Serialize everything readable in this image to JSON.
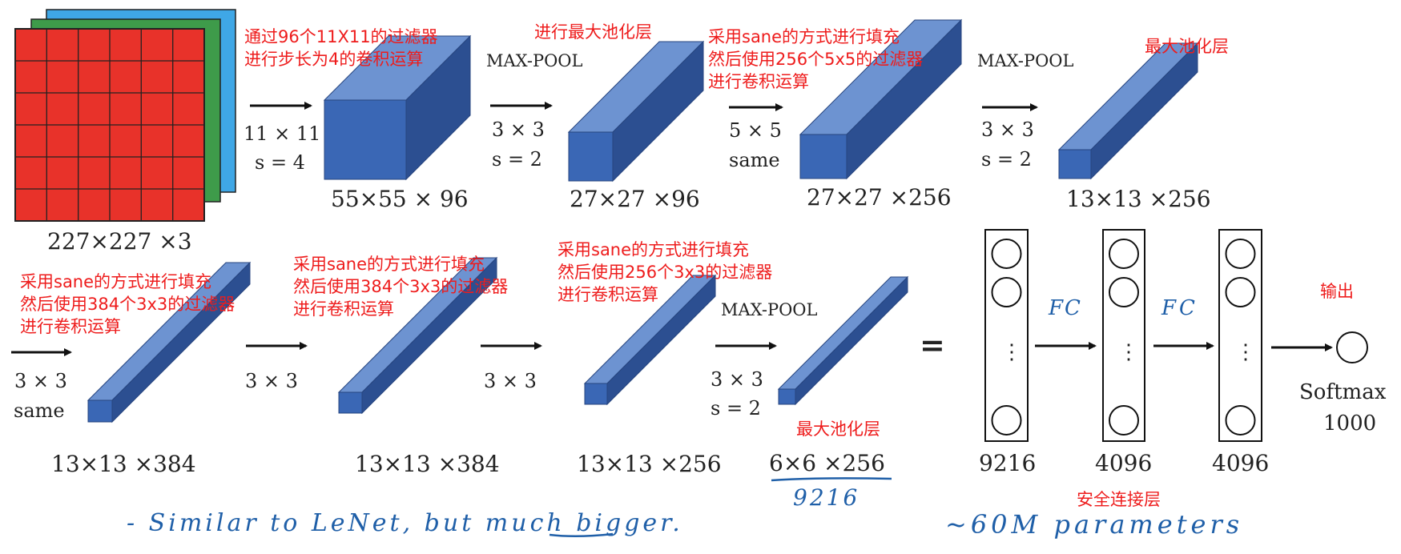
{
  "row1": {
    "input": {
      "dims": "227×227 ×3"
    },
    "conv1": {
      "kernel": "11 × 11",
      "stride": "s = 4",
      "dims": "55×55 × 96",
      "note": "通过96个11X11的过滤器\n进行步长为4的卷积运算"
    },
    "pool1": {
      "op": "MAX-POOL",
      "kernel": "3 × 3",
      "stride": "s = 2",
      "dims": "27×27 ×96",
      "note": "进行最大池化层"
    },
    "conv2": {
      "kernel": "5 × 5",
      "stride": "same",
      "dims": "27×27 ×256",
      "note": "采用sane的方式进行填充\n然后使用256个5x5的过滤器\n进行卷积运算"
    },
    "pool2": {
      "op": "MAX-POOL",
      "kernel": "3 × 3",
      "stride": "s = 2",
      "dims": "13×13 ×256",
      "note": "最大池化层"
    }
  },
  "row2": {
    "conv3": {
      "kernel": "3 × 3",
      "stride": "same",
      "dims": "13×13 ×384",
      "note": "采用sane的方式进行填充\n然后使用384个3x3的过滤器\n进行卷积运算"
    },
    "conv4": {
      "kernel": "3 × 3",
      "dims": "13×13 ×384",
      "note": "采用sane的方式进行填充\n然后使用384个3x3的过滤器\n进行卷积运算"
    },
    "conv5": {
      "kernel": "3 × 3",
      "dims": "13×13 ×256",
      "note": "采用sane的方式进行填充\n然后使用256个3x3的过滤器\n进行卷积运算"
    },
    "pool3": {
      "op": "MAX-POOL",
      "kernel": "3 × 3",
      "stride": "s = 2",
      "dims": "6×6 ×256",
      "note": "最大池化层"
    },
    "equals": "="
  },
  "fc": {
    "layers": [
      {
        "size": "9216",
        "dots": "⋮"
      },
      {
        "size": "4096",
        "dots": "⋮"
      },
      {
        "size": "4096",
        "dots": "⋮"
      }
    ],
    "arrow_label_1": "FC",
    "arrow_label_2": "FC",
    "output_note": "输出",
    "output_label": "Softmax",
    "output_size": "1000",
    "fc_note": "安全连接层"
  },
  "handwriting": {
    "flatten_size": "9216",
    "comment": "- Similar to LeNet, but much bigger.",
    "params": "~60M parameters"
  },
  "colors": {
    "cube_front": "#3a67b5",
    "cube_top": "#6d93d1",
    "cube_side": "#2c4f91",
    "input_red": "#e8322a",
    "input_green": "#3e9b4a",
    "input_blue": "#3fa7e6",
    "note_red": "#ee1c1c",
    "ink_blue": "#1f5fa8"
  }
}
